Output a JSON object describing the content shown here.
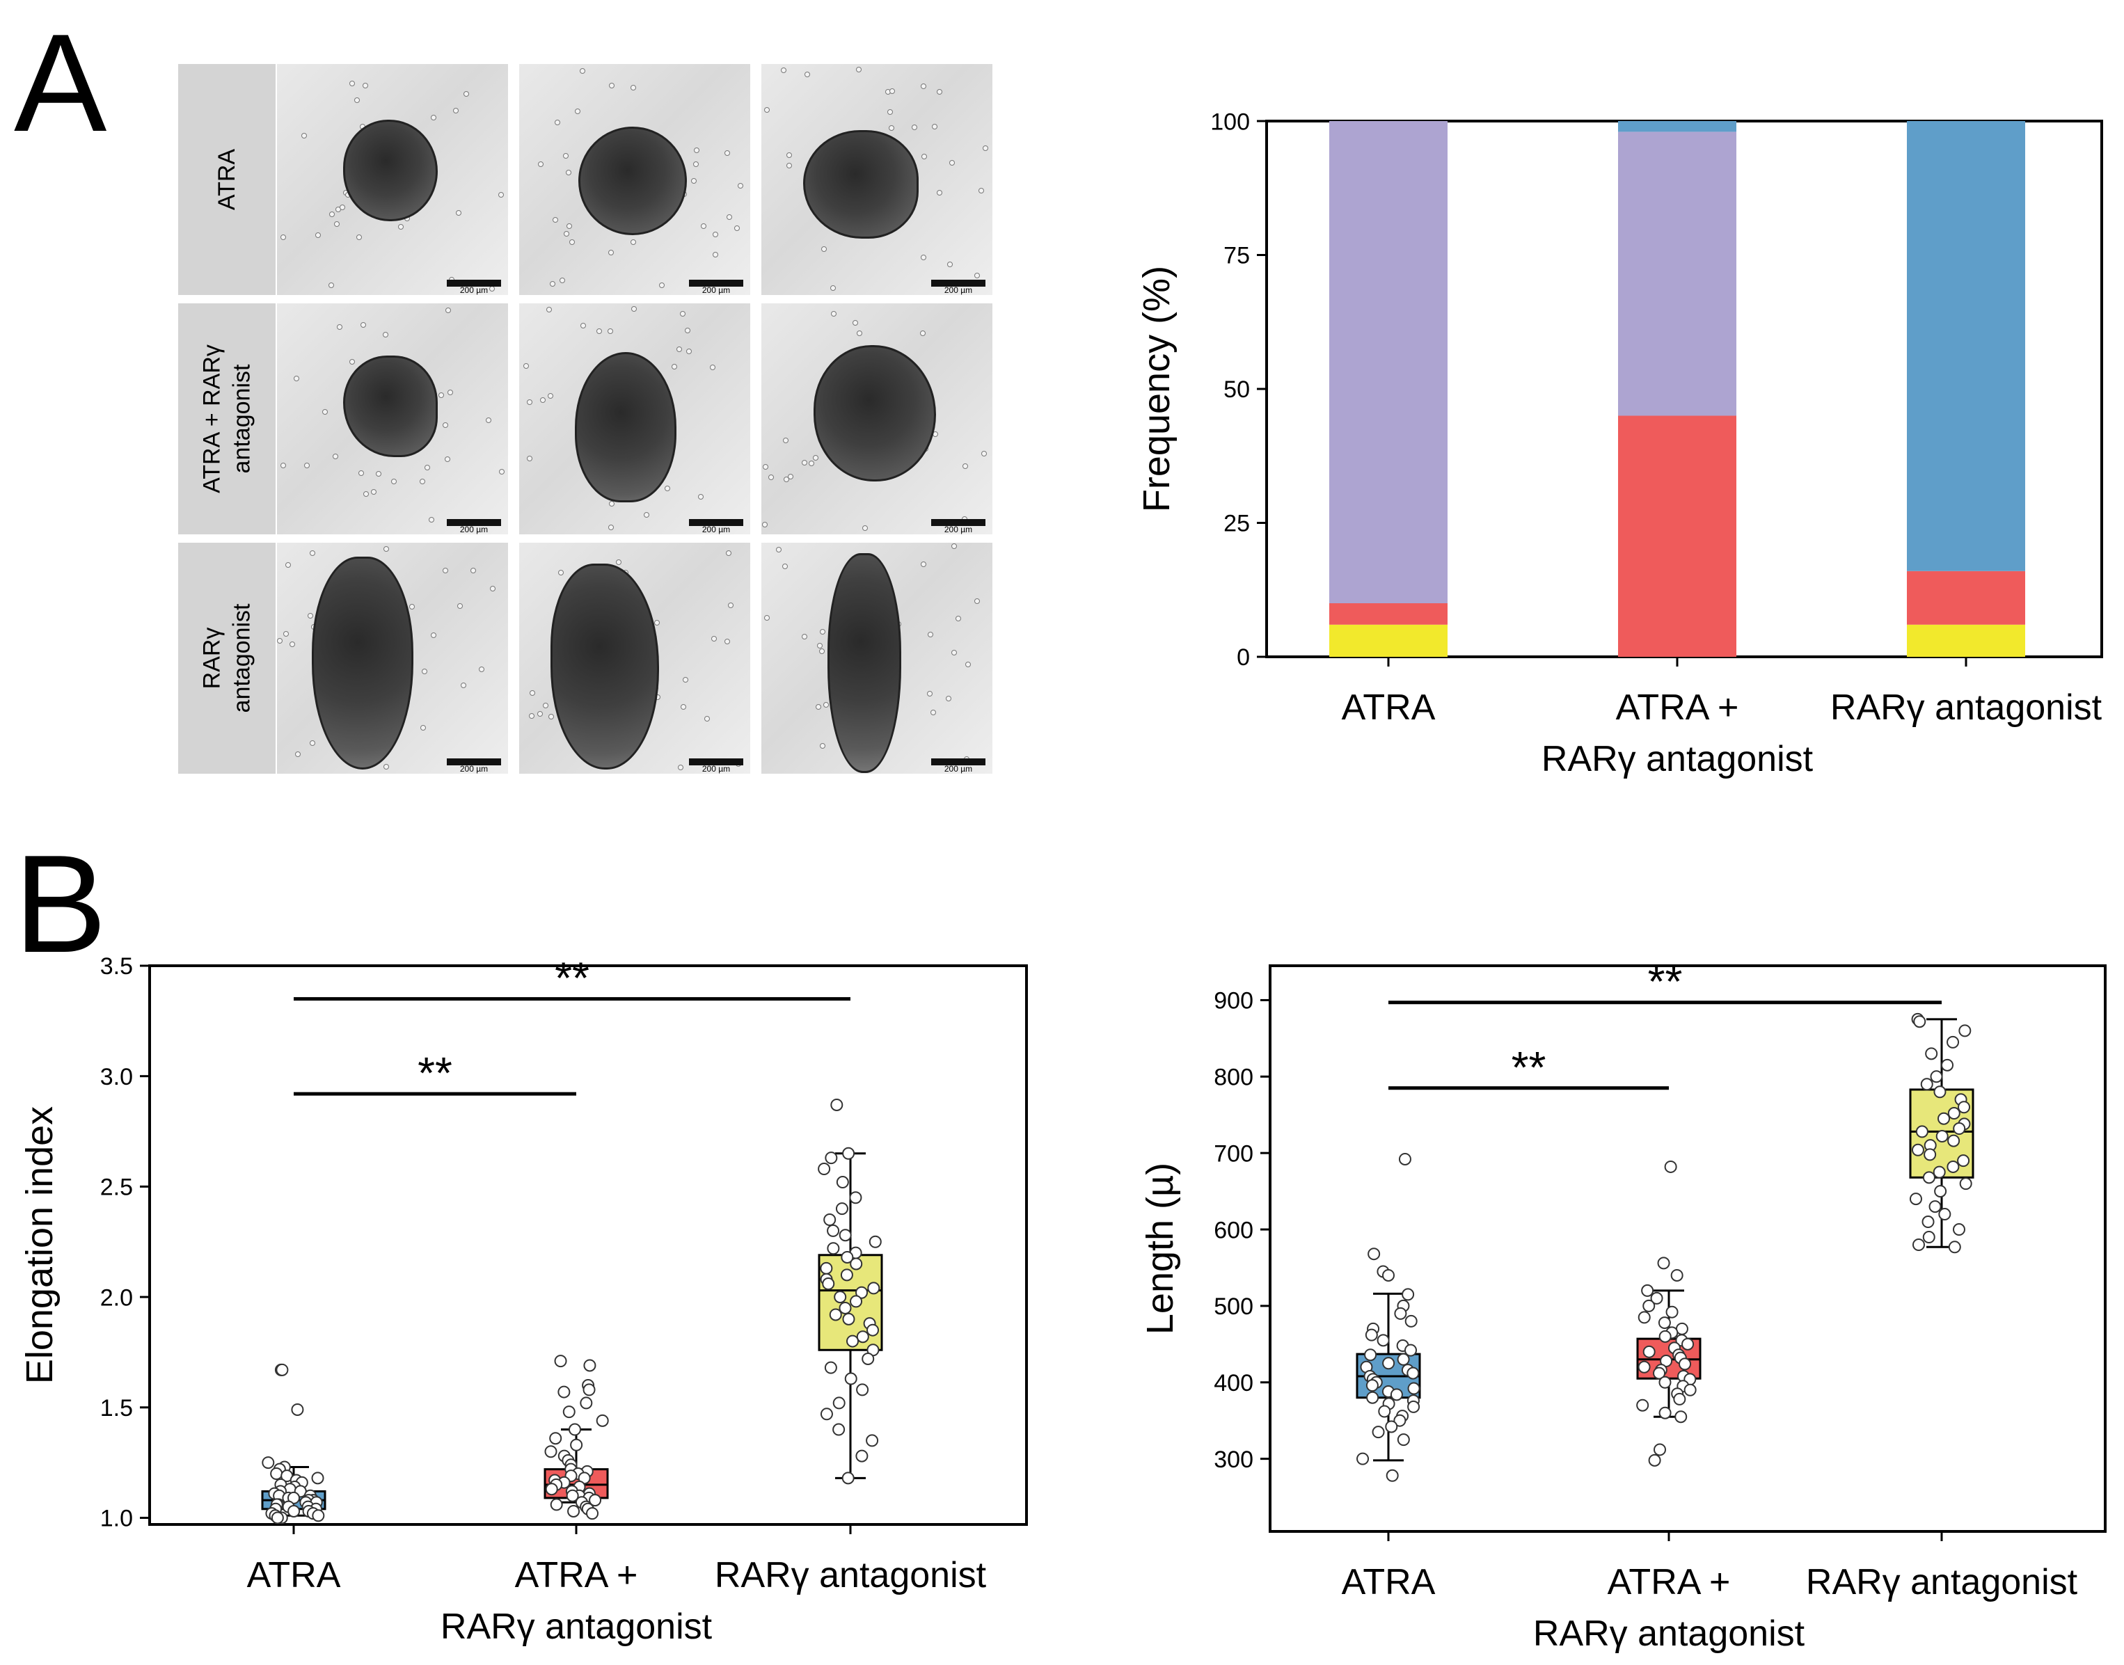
{
  "panels": {
    "a_label": "A",
    "b_label": "B"
  },
  "micrographs": {
    "rows": [
      {
        "label_lines": [
          "ATRA"
        ]
      },
      {
        "label_lines": [
          "ATRA + RARγ",
          "antagonist"
        ]
      },
      {
        "label_lines": [
          "RARγ",
          "antagonist"
        ]
      }
    ],
    "scale_bar_label": "200 µm",
    "tiles_per_row": 3
  },
  "chart_data": [
    {
      "id": "frequency",
      "type": "bar",
      "stacked": true,
      "categories": [
        [
          "ATRA"
        ],
        [
          "ATRA +",
          "RARγ antagonist"
        ],
        [
          "RARγ antagonist"
        ]
      ],
      "ylabel": "Frequency (%)",
      "ylim": [
        0,
        100
      ],
      "yticks": [
        0,
        25,
        50,
        75,
        100
      ],
      "series": [
        {
          "color": "#f2e92c",
          "values": [
            6,
            0,
            6
          ]
        },
        {
          "color": "#ef5b5b",
          "values": [
            4,
            45,
            10
          ]
        },
        {
          "color": "#ada4d1",
          "values": [
            90,
            53,
            0
          ]
        },
        {
          "color": "#5f9ec9",
          "values": [
            0,
            2,
            84
          ]
        }
      ]
    },
    {
      "id": "elongation",
      "type": "box",
      "categories": [
        [
          "ATRA"
        ],
        [
          "ATRA +",
          "RARγ antagonist"
        ],
        [
          "RARγ antagonist"
        ]
      ],
      "ylabel": "Elongation index",
      "ylim": [
        0.97,
        3.5
      ],
      "yticks": [
        1.0,
        1.5,
        2.0,
        2.5,
        3.0,
        3.5
      ],
      "colors": [
        "#5f9ec9",
        "#ef5b5b",
        "#e7e77a"
      ],
      "boxes": [
        {
          "whisker_low": 1.01,
          "q1": 1.04,
          "median": 1.08,
          "q3": 1.12,
          "whisker_high": 1.23
        },
        {
          "whisker_low": 1.07,
          "q1": 1.09,
          "median": 1.15,
          "q3": 1.22,
          "whisker_high": 1.4
        },
        {
          "whisker_low": 1.18,
          "q1": 1.76,
          "median": 2.03,
          "q3": 2.19,
          "whisker_high": 2.65
        }
      ],
      "points": [
        [
          1.67,
          1.67,
          1.49,
          1.25,
          1.23,
          1.22,
          1.2,
          1.19,
          1.18,
          1.17,
          1.16,
          1.15,
          1.14,
          1.13,
          1.12,
          1.12,
          1.11,
          1.1,
          1.1,
          1.09,
          1.09,
          1.08,
          1.08,
          1.07,
          1.07,
          1.06,
          1.06,
          1.05,
          1.05,
          1.04,
          1.04,
          1.03,
          1.03,
          1.02,
          1.02,
          1.01,
          1.01,
          1.0,
          1.0,
          1.0
        ],
        [
          1.71,
          1.69,
          1.6,
          1.58,
          1.57,
          1.52,
          1.48,
          1.44,
          1.4,
          1.36,
          1.33,
          1.3,
          1.28,
          1.26,
          1.24,
          1.22,
          1.21,
          1.2,
          1.19,
          1.18,
          1.17,
          1.16,
          1.15,
          1.14,
          1.13,
          1.12,
          1.11,
          1.1,
          1.1,
          1.09,
          1.08,
          1.07,
          1.06,
          1.05,
          1.04,
          1.03,
          1.02
        ],
        [
          2.87,
          2.65,
          2.63,
          2.58,
          2.52,
          2.45,
          2.4,
          2.35,
          2.3,
          2.28,
          2.25,
          2.22,
          2.2,
          2.18,
          2.15,
          2.13,
          2.1,
          2.08,
          2.06,
          2.04,
          2.02,
          2.0,
          1.98,
          1.95,
          1.92,
          1.9,
          1.88,
          1.85,
          1.82,
          1.8,
          1.76,
          1.72,
          1.68,
          1.63,
          1.58,
          1.52,
          1.47,
          1.4,
          1.35,
          1.28,
          1.18
        ]
      ],
      "significance": [
        {
          "from": 0,
          "to": 2,
          "y": 3.35,
          "label": "**"
        },
        {
          "from": 0,
          "to": 1,
          "y": 2.92,
          "label": "**"
        }
      ]
    },
    {
      "id": "length",
      "type": "box",
      "categories": [
        [
          "ATRA"
        ],
        [
          "ATRA +",
          "RARγ antagonist"
        ],
        [
          "RARγ antagonist"
        ]
      ],
      "ylabel": "Length (µ)",
      "ylim": [
        205,
        945
      ],
      "yticks": [
        300,
        400,
        500,
        600,
        700,
        800,
        900
      ],
      "colors": [
        "#5f9ec9",
        "#ef5b5b",
        "#e7e77a"
      ],
      "boxes": [
        {
          "whisker_low": 298,
          "q1": 380,
          "median": 408,
          "q3": 437,
          "whisker_high": 516
        },
        {
          "whisker_low": 355,
          "q1": 405,
          "median": 430,
          "q3": 457,
          "whisker_high": 520
        },
        {
          "whisker_low": 577,
          "q1": 668,
          "median": 728,
          "q3": 783,
          "whisker_high": 875
        }
      ],
      "points": [
        [
          692,
          568,
          545,
          540,
          515,
          500,
          490,
          480,
          470,
          462,
          455,
          448,
          442,
          436,
          430,
          425,
          420,
          416,
          412,
          408,
          404,
          400,
          396,
          392,
          388,
          384,
          380,
          376,
          372,
          368,
          362,
          356,
          350,
          342,
          335,
          325,
          300,
          278
        ],
        [
          682,
          556,
          540,
          520,
          510,
          500,
          492,
          485,
          478,
          470,
          465,
          460,
          455,
          450,
          445,
          440,
          436,
          432,
          428,
          424,
          420,
          416,
          412,
          408,
          404,
          400,
          395,
          390,
          385,
          378,
          370,
          360,
          355,
          312,
          298
        ],
        [
          875,
          872,
          860,
          845,
          830,
          815,
          800,
          790,
          780,
          770,
          760,
          752,
          745,
          738,
          732,
          728,
          722,
          716,
          710,
          704,
          698,
          690,
          682,
          675,
          668,
          660,
          650,
          640,
          630,
          620,
          610,
          600,
          590,
          580,
          577
        ]
      ],
      "significance": [
        {
          "from": 0,
          "to": 2,
          "y": 897,
          "label": "**"
        },
        {
          "from": 0,
          "to": 1,
          "y": 785,
          "label": "**"
        }
      ]
    }
  ]
}
